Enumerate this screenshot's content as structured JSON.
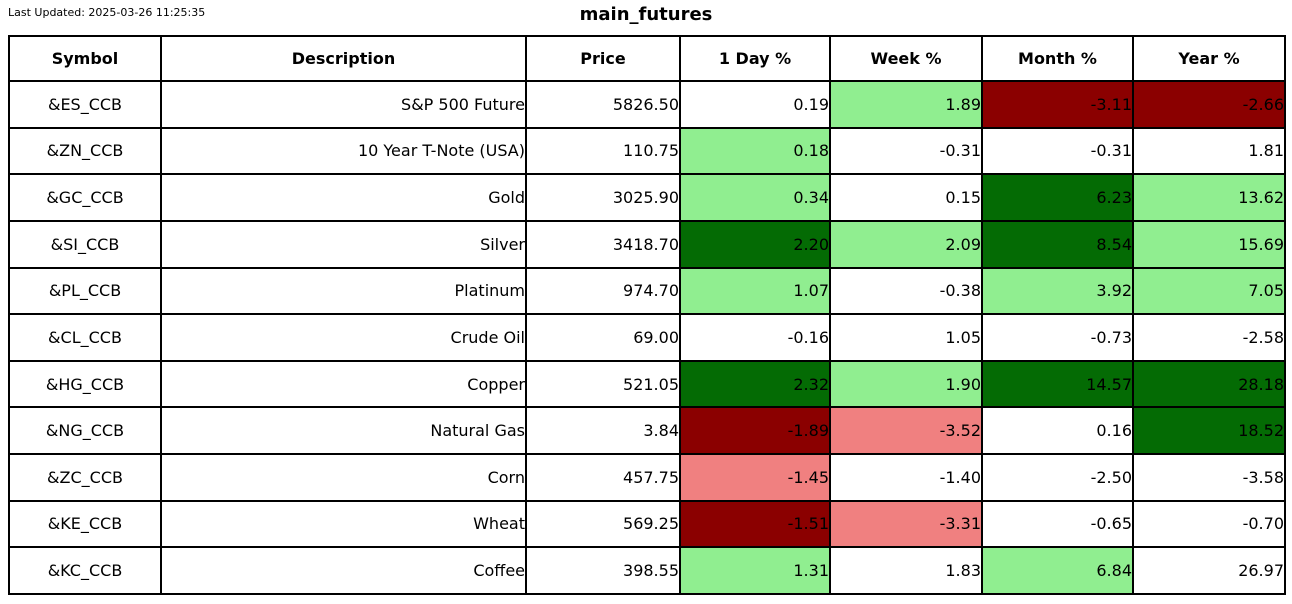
{
  "meta": {
    "last_updated": "Last Updated: 2025-03-26 11:25:35",
    "title": "main_futures"
  },
  "chart_data": {
    "type": "table",
    "title": "main_futures",
    "columns": [
      {
        "key": "symbol",
        "label": "Symbol"
      },
      {
        "key": "description",
        "label": "Description"
      },
      {
        "key": "price",
        "label": "Price"
      },
      {
        "key": "day_pct",
        "label": "1 Day %"
      },
      {
        "key": "week_pct",
        "label": "Week %"
      },
      {
        "key": "month_pct",
        "label": "Month %"
      },
      {
        "key": "year_pct",
        "label": "Year %"
      }
    ],
    "colors": {
      "white": "#FFFFFF",
      "light_green": "#90EE90",
      "dark_green": "#046B04",
      "light_red": "#F08080",
      "dark_red": "#8B0000"
    },
    "rows": [
      {
        "symbol": "&ES_CCB",
        "description": "S&P 500 Future",
        "price": "5826.50",
        "pcts": [
          {
            "v": "0.19",
            "bg": "white"
          },
          {
            "v": "1.89",
            "bg": "light_green"
          },
          {
            "v": "-3.11",
            "bg": "dark_red"
          },
          {
            "v": "-2.66",
            "bg": "dark_red"
          }
        ]
      },
      {
        "symbol": "&ZN_CCB",
        "description": "10 Year T-Note (USA)",
        "price": "110.75",
        "pcts": [
          {
            "v": "0.18",
            "bg": "light_green"
          },
          {
            "v": "-0.31",
            "bg": "white"
          },
          {
            "v": "-0.31",
            "bg": "white"
          },
          {
            "v": "1.81",
            "bg": "white"
          }
        ]
      },
      {
        "symbol": "&GC_CCB",
        "description": "Gold",
        "price": "3025.90",
        "pcts": [
          {
            "v": "0.34",
            "bg": "light_green"
          },
          {
            "v": "0.15",
            "bg": "white"
          },
          {
            "v": "6.23",
            "bg": "dark_green"
          },
          {
            "v": "13.62",
            "bg": "light_green"
          }
        ]
      },
      {
        "symbol": "&SI_CCB",
        "description": "Silver",
        "price": "3418.70",
        "pcts": [
          {
            "v": "2.20",
            "bg": "dark_green"
          },
          {
            "v": "2.09",
            "bg": "light_green"
          },
          {
            "v": "8.54",
            "bg": "dark_green"
          },
          {
            "v": "15.69",
            "bg": "light_green"
          }
        ]
      },
      {
        "symbol": "&PL_CCB",
        "description": "Platinum",
        "price": "974.70",
        "pcts": [
          {
            "v": "1.07",
            "bg": "light_green"
          },
          {
            "v": "-0.38",
            "bg": "white"
          },
          {
            "v": "3.92",
            "bg": "light_green"
          },
          {
            "v": "7.05",
            "bg": "light_green"
          }
        ]
      },
      {
        "symbol": "&CL_CCB",
        "description": "Crude Oil",
        "price": "69.00",
        "pcts": [
          {
            "v": "-0.16",
            "bg": "white"
          },
          {
            "v": "1.05",
            "bg": "white"
          },
          {
            "v": "-0.73",
            "bg": "white"
          },
          {
            "v": "-2.58",
            "bg": "white"
          }
        ]
      },
      {
        "symbol": "&HG_CCB",
        "description": "Copper",
        "price": "521.05",
        "pcts": [
          {
            "v": "2.32",
            "bg": "dark_green"
          },
          {
            "v": "1.90",
            "bg": "light_green"
          },
          {
            "v": "14.57",
            "bg": "dark_green"
          },
          {
            "v": "28.18",
            "bg": "dark_green"
          }
        ]
      },
      {
        "symbol": "&NG_CCB",
        "description": "Natural Gas",
        "price": "3.84",
        "pcts": [
          {
            "v": "-1.89",
            "bg": "dark_red"
          },
          {
            "v": "-3.52",
            "bg": "light_red"
          },
          {
            "v": "0.16",
            "bg": "white"
          },
          {
            "v": "18.52",
            "bg": "dark_green"
          }
        ]
      },
      {
        "symbol": "&ZC_CCB",
        "description": "Corn",
        "price": "457.75",
        "pcts": [
          {
            "v": "-1.45",
            "bg": "light_red"
          },
          {
            "v": "-1.40",
            "bg": "white"
          },
          {
            "v": "-2.50",
            "bg": "white"
          },
          {
            "v": "-3.58",
            "bg": "white"
          }
        ]
      },
      {
        "symbol": "&KE_CCB",
        "description": "Wheat",
        "price": "569.25",
        "pcts": [
          {
            "v": "-1.51",
            "bg": "dark_red"
          },
          {
            "v": "-3.31",
            "bg": "light_red"
          },
          {
            "v": "-0.65",
            "bg": "white"
          },
          {
            "v": "-0.70",
            "bg": "white"
          }
        ]
      },
      {
        "symbol": "&KC_CCB",
        "description": "Coffee",
        "price": "398.55",
        "pcts": [
          {
            "v": "1.31",
            "bg": "light_green"
          },
          {
            "v": "1.83",
            "bg": "white"
          },
          {
            "v": "6.84",
            "bg": "light_green"
          },
          {
            "v": "26.97",
            "bg": "white"
          }
        ]
      }
    ]
  }
}
